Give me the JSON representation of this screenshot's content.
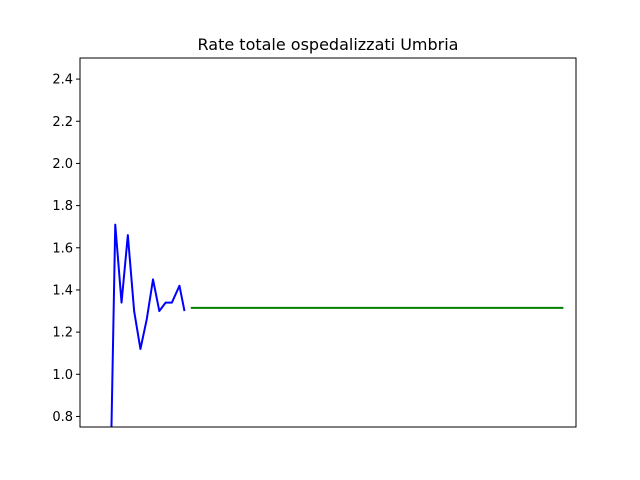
{
  "chart_data": {
    "type": "line",
    "title": "Rate totale ospedalizzati Umbria",
    "xlabel": "",
    "ylabel": "",
    "ylim": [
      0.75,
      2.5
    ],
    "xlim": [
      -24,
      370
    ],
    "yticks": [
      0.8,
      1.0,
      1.2,
      1.4,
      1.6,
      1.8,
      2.0,
      2.2,
      2.4
    ],
    "ytick_labels": [
      "0.8",
      "1.0",
      "1.2",
      "1.4",
      "1.6",
      "1.8",
      "2.0",
      "2.2",
      "2.4"
    ],
    "x_tick_labels_shown": false,
    "grid": false,
    "series": [
      {
        "color": "#0000ff",
        "x": [
          1,
          4,
          9,
          14,
          19,
          24,
          29,
          34,
          39,
          44,
          49,
          55,
          59
        ],
        "y": [
          0.75,
          1.71,
          1.34,
          1.66,
          1.3,
          1.12,
          1.26,
          1.45,
          1.3,
          1.34,
          1.34,
          1.42,
          1.3
        ]
      },
      {
        "color": "#008000",
        "x": [
          64,
          360
        ],
        "y": [
          1.315,
          1.315
        ]
      }
    ]
  }
}
